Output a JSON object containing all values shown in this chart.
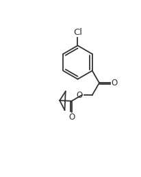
{
  "bg_color": "#ffffff",
  "line_color": "#333333",
  "text_color": "#333333",
  "lw": 1.3,
  "font_size": 8.5,
  "cl_label": "Cl",
  "o_label": "O",
  "figsize": [
    2.06,
    2.59
  ],
  "dpi": 100,
  "xlim": [
    0,
    10
  ],
  "ylim": [
    0,
    12.6
  ]
}
